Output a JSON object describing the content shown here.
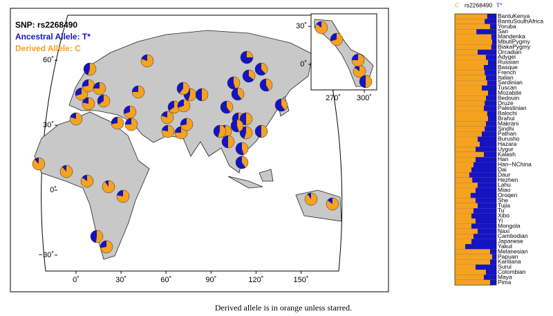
{
  "map": {
    "snp_label": "SNP: rs2268490",
    "ancestral_label": "Ancestral Allele: T*",
    "derived_label": "Derived Allele: C",
    "derived_color": "#f5a21e",
    "ancestral_color": "#1414c0",
    "x_ticks": [
      {
        "value": 0,
        "label": "0˚"
      },
      {
        "value": 30,
        "label": "30˚"
      },
      {
        "value": 60,
        "label": "60˚"
      },
      {
        "value": 90,
        "label": "90˚"
      },
      {
        "value": 120,
        "label": "120˚"
      },
      {
        "value": 150,
        "label": "150˚"
      }
    ],
    "y_ticks": [
      {
        "value": 60,
        "label": "60˚"
      },
      {
        "value": 30,
        "label": "30˚"
      },
      {
        "value": 0,
        "label": "0˚"
      },
      {
        "value": -30,
        "label": "−30˚"
      }
    ],
    "inset_x_ticks": [
      {
        "value": 270,
        "label": "270˚"
      },
      {
        "value": 300,
        "label": "300˚"
      }
    ],
    "inset_y_ticks": [
      {
        "value": 30,
        "label": "30˚"
      },
      {
        "value": 0,
        "label": "0˚"
      }
    ]
  },
  "bar_panel": {
    "header_left": "C",
    "header_mid": "rs2268490",
    "header_right": "T*",
    "populations": [
      {
        "name": "BantuKenya",
        "derived": 0.78
      },
      {
        "name": "BantuSouthAfrica",
        "derived": 0.72
      },
      {
        "name": "Yoruba",
        "derived": 0.85
      },
      {
        "name": "San",
        "derived": 0.52
      },
      {
        "name": "Mandenka",
        "derived": 0.88
      },
      {
        "name": "MbutiPygmy",
        "derived": 0.9
      },
      {
        "name": "BiakaPygmy",
        "derived": 0.88
      },
      {
        "name": "Orcadian",
        "derived": 0.55
      },
      {
        "name": "Adygei",
        "derived": 0.75
      },
      {
        "name": "Russian",
        "derived": 0.8
      },
      {
        "name": "Basque",
        "derived": 0.7
      },
      {
        "name": "French",
        "derived": 0.72
      },
      {
        "name": "Italian",
        "derived": 0.75
      },
      {
        "name": "Sardinian",
        "derived": 0.78
      },
      {
        "name": "Tuscan",
        "derived": 0.65
      },
      {
        "name": "Mozabite",
        "derived": 0.8
      },
      {
        "name": "Bedouin",
        "derived": 0.75
      },
      {
        "name": "Druze",
        "derived": 0.72
      },
      {
        "name": "Palestinian",
        "derived": 0.7
      },
      {
        "name": "Balochi",
        "derived": 0.78
      },
      {
        "name": "Brahui",
        "derived": 0.8
      },
      {
        "name": "Makrani",
        "derived": 0.75
      },
      {
        "name": "Sindhi",
        "derived": 0.72
      },
      {
        "name": "Pathan",
        "derived": 0.65
      },
      {
        "name": "Burusho",
        "derived": 0.55
      },
      {
        "name": "Hazara",
        "derived": 0.6
      },
      {
        "name": "Uygur",
        "derived": 0.5
      },
      {
        "name": "Kalash",
        "derived": 0.7
      },
      {
        "name": "Han",
        "derived": 0.5
      },
      {
        "name": "Han−NChina",
        "derived": 0.45
      },
      {
        "name": "Dai",
        "derived": 0.4
      },
      {
        "name": "Daur",
        "derived": 0.35
      },
      {
        "name": "Hezhen",
        "derived": 0.42
      },
      {
        "name": "Lahu",
        "derived": 0.55
      },
      {
        "name": "Miao",
        "derived": 0.5
      },
      {
        "name": "Oroqen",
        "derived": 0.38
      },
      {
        "name": "She",
        "derived": 0.5
      },
      {
        "name": "Tujia",
        "derived": 0.55
      },
      {
        "name": "Tu",
        "derived": 0.45
      },
      {
        "name": "Xibo",
        "derived": 0.4
      },
      {
        "name": "Yi",
        "derived": 0.5
      },
      {
        "name": "Mongola",
        "derived": 0.4
      },
      {
        "name": "Naxi",
        "derived": 0.55
      },
      {
        "name": "Cambodian",
        "derived": 0.45
      },
      {
        "name": "Japanese",
        "derived": 0.4
      },
      {
        "name": "Yakut",
        "derived": 0.25
      },
      {
        "name": "Melanesian",
        "derived": 0.85
      },
      {
        "name": "Papuan",
        "derived": 0.9
      },
      {
        "name": "Karitiana",
        "derived": 0.85
      },
      {
        "name": "Surui",
        "derived": 0.5
      },
      {
        "name": "Colombian",
        "derived": 0.75
      },
      {
        "name": "Maya",
        "derived": 0.7
      },
      {
        "name": "Pima",
        "derived": 0.85
      }
    ]
  },
  "caption": "Derived allele is in orange unless starred."
}
